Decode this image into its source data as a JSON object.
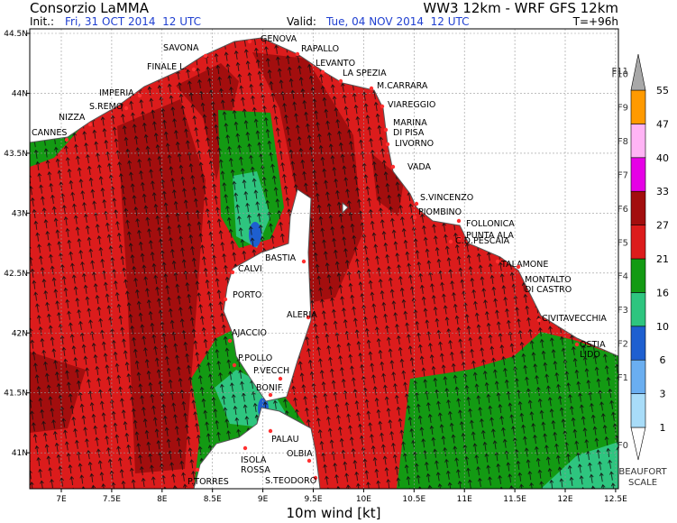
{
  "header": {
    "title_left": "Consorzio LaMMA",
    "title_right": "WW3 12km - WRF GFS 12km",
    "init_label": "Init.:",
    "init_value": "Fri, 31 OCT 2014  12 UTC",
    "valid_label": "Valid:",
    "valid_value": "Tue, 04 NOV 2014  12 UTC",
    "lead": "T=+96h"
  },
  "footer": "10m wind [kt]",
  "lon_ticks": [
    {
      "value": 7,
      "label": "7E"
    },
    {
      "value": 7.5,
      "label": "7.5E"
    },
    {
      "value": 8,
      "label": "8E"
    },
    {
      "value": 8.5,
      "label": "8.5E"
    },
    {
      "value": 9,
      "label": "9E"
    },
    {
      "value": 9.5,
      "label": "9.5E"
    },
    {
      "value": 10,
      "label": "10E"
    },
    {
      "value": 10.5,
      "label": "10.5E"
    },
    {
      "value": 11,
      "label": "11E"
    },
    {
      "value": 11.5,
      "label": "11.5E"
    },
    {
      "value": 12,
      "label": "12E"
    },
    {
      "value": 12.5,
      "label": "12.5E"
    }
  ],
  "lat_ticks": [
    {
      "value": 41,
      "label": "41N"
    },
    {
      "value": 41.5,
      "label": "41.5N"
    },
    {
      "value": 42,
      "label": "42N"
    },
    {
      "value": 42.5,
      "label": "42.5N"
    },
    {
      "value": 43,
      "label": "43N"
    },
    {
      "value": 43.5,
      "label": "43.5N"
    },
    {
      "value": 44,
      "label": "44N"
    },
    {
      "value": 44.5,
      "label": "44.5N"
    }
  ],
  "places": [
    {
      "lines": [
        "SAVONA"
      ]
    },
    {
      "lines": [
        "GENOVA"
      ]
    },
    {
      "lines": [
        "RAPALLO"
      ]
    },
    {
      "lines": [
        "FINALE L."
      ]
    },
    {
      "lines": [
        "LEVANTO"
      ]
    },
    {
      "lines": [
        "LA SPEZIA"
      ]
    },
    {
      "lines": [
        "IMPERIA"
      ]
    },
    {
      "lines": [
        "S.REMO"
      ]
    },
    {
      "lines": [
        "NIZZA"
      ]
    },
    {
      "lines": [
        "CANNES"
      ]
    },
    {
      "lines": [
        "M.CARRARA"
      ]
    },
    {
      "lines": [
        "VIAREGGIO"
      ]
    },
    {
      "lines": [
        "MARINA",
        "DI PISA"
      ]
    },
    {
      "lines": [
        "LIVORNO"
      ]
    },
    {
      "lines": [
        "VADA"
      ]
    },
    {
      "lines": [
        "S.VINCENZO"
      ]
    },
    {
      "lines": [
        "PIOMBINO"
      ]
    },
    {
      "lines": [
        "FOLLONICA"
      ]
    },
    {
      "lines": [
        "PUNTA ALA"
      ]
    },
    {
      "lines": [
        "C.D.PESCAIA"
      ]
    },
    {
      "lines": [
        "TALAMONE"
      ]
    },
    {
      "lines": [
        "MONTALTO",
        "DI CASTRO"
      ]
    },
    {
      "lines": [
        "CIVITAVECCHIA"
      ]
    },
    {
      "lines": [
        "OSTIA",
        "LIDO"
      ]
    },
    {
      "lines": [
        "BASTIA"
      ]
    },
    {
      "lines": [
        "CALVI"
      ]
    },
    {
      "lines": [
        "PORTO"
      ]
    },
    {
      "lines": [
        "ALERIA"
      ]
    },
    {
      "lines": [
        "AJACCIO"
      ]
    },
    {
      "lines": [
        "P.POLLO"
      ]
    },
    {
      "lines": [
        "P.VECCH"
      ]
    },
    {
      "lines": [
        "BONIF."
      ]
    },
    {
      "lines": [
        "PALAU"
      ]
    },
    {
      "lines": [
        "OLBIA"
      ]
    },
    {
      "lines": [
        "ISOLA",
        "ROSSA"
      ]
    },
    {
      "lines": [
        "S.TEODORO"
      ]
    },
    {
      "lines": [
        "P.TORRES"
      ]
    }
  ],
  "colorbar": {
    "levels": [
      1,
      3,
      6,
      10,
      16,
      21,
      27,
      33,
      40,
      47,
      55
    ],
    "beaufort": [
      "F0",
      "F1",
      "F2",
      "F3",
      "F4",
      "F5",
      "F6",
      "F7",
      "F8",
      "F9",
      "F10",
      "F11"
    ],
    "colors": [
      "#ffffff",
      "#a8dcf8",
      "#6aaef0",
      "#1e5fd0",
      "#2ec57f",
      "#139a13",
      "#dc1c1c",
      "#a30e0e",
      "#e600e6",
      "#ffb4f5",
      "#ff9a00",
      "#a8a8a8"
    ],
    "scale_label": [
      "BEAUFORT",
      "SCALE"
    ]
  }
}
